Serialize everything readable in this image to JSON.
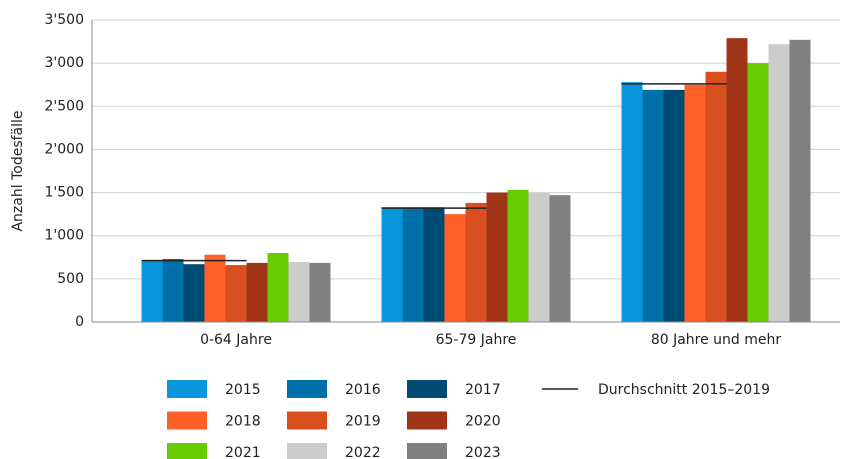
{
  "chart_data": {
    "type": "bar",
    "y_label": "Anzahl Todesfälle",
    "categories": [
      "0-64 Jahre",
      "65-79 Jahre",
      "80 Jahre und mehr"
    ],
    "series": [
      {
        "name": "2015",
        "color": "#0a96dc",
        "values": [
          720,
          1330,
          2780
        ]
      },
      {
        "name": "2016",
        "color": "#0070aa",
        "values": [
          730,
          1330,
          2690
        ]
      },
      {
        "name": "2017",
        "color": "#004b73",
        "values": [
          670,
          1330,
          2690
        ]
      },
      {
        "name": "2018",
        "color": "#ff6128",
        "values": [
          780,
          1250,
          2750
        ]
      },
      {
        "name": "2019",
        "color": "#d9501e",
        "values": [
          660,
          1380,
          2900
        ]
      },
      {
        "name": "2020",
        "color": "#a03519",
        "values": [
          685,
          1500,
          3290
        ]
      },
      {
        "name": "2021",
        "color": "#66cc00",
        "values": [
          800,
          1530,
          3000
        ]
      },
      {
        "name": "2022",
        "color": "#cccccc",
        "values": [
          695,
          1500,
          3220
        ]
      },
      {
        "name": "2023",
        "color": "#808080",
        "values": [
          685,
          1470,
          3270
        ]
      }
    ],
    "average": {
      "name": "Durchschnitt 2015–2019",
      "color": "#222222",
      "values": [
        712,
        1320,
        2760
      ]
    },
    "ylim": [
      0,
      3500
    ],
    "yticks": [
      0,
      500,
      {
        "value": 1000,
        "label": "1'000"
      },
      {
        "value": 1500,
        "label": "1'500"
      },
      {
        "value": 2000,
        "label": "2'000"
      },
      {
        "value": 2500,
        "label": "2'500"
      },
      {
        "value": 3000,
        "label": "3'000"
      },
      {
        "value": 3500,
        "label": "3'500"
      }
    ],
    "grid": true
  }
}
